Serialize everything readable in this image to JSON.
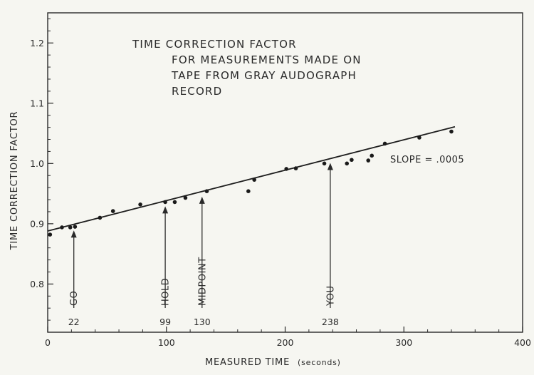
{
  "chart_data": {
    "type": "scatter",
    "title_lines": [
      "TIME  CORRECTION  FACTOR",
      "FOR MEASUREMENTS  MADE  ON",
      "TAPE  FROM  GRAY  AUDOGRAPH",
      "RECORD"
    ],
    "xlabel": "MEASURED  TIME",
    "xlabel_unit": "(seconds)",
    "ylabel": "TIME  CORRECTION  FACTOR",
    "xlim": [
      0,
      400
    ],
    "ylim": [
      0.72,
      1.25
    ],
    "x_ticks": [
      0,
      100,
      200,
      300,
      400
    ],
    "x_tick_labels": [
      "0",
      "100",
      "200",
      "300",
      "400"
    ],
    "y_ticks": [
      0.8,
      0.9,
      1.0,
      1.1,
      1.2
    ],
    "y_tick_labels": [
      "0.8",
      "0.9",
      "1.0",
      "1.1",
      "1.2"
    ],
    "grid": false,
    "points": [
      {
        "x": 2,
        "y": 0.882
      },
      {
        "x": 12,
        "y": 0.894
      },
      {
        "x": 19,
        "y": 0.894
      },
      {
        "x": 23,
        "y": 0.895
      },
      {
        "x": 44,
        "y": 0.91
      },
      {
        "x": 55,
        "y": 0.921
      },
      {
        "x": 78,
        "y": 0.932
      },
      {
        "x": 99,
        "y": 0.936
      },
      {
        "x": 107,
        "y": 0.936
      },
      {
        "x": 116,
        "y": 0.943
      },
      {
        "x": 134,
        "y": 0.954
      },
      {
        "x": 169,
        "y": 0.954
      },
      {
        "x": 174,
        "y": 0.973
      },
      {
        "x": 201,
        "y": 0.991
      },
      {
        "x": 209,
        "y": 0.992
      },
      {
        "x": 233,
        "y": 1.0
      },
      {
        "x": 252,
        "y": 1.0
      },
      {
        "x": 256,
        "y": 1.006
      },
      {
        "x": 270,
        "y": 1.005
      },
      {
        "x": 273,
        "y": 1.013
      },
      {
        "x": 284,
        "y": 1.033
      },
      {
        "x": 313,
        "y": 1.043
      },
      {
        "x": 340,
        "y": 1.053
      }
    ],
    "fit_line": {
      "x": [
        0,
        343
      ],
      "y": [
        0.888,
        1.061
      ]
    },
    "slope_label": "SLOPE = .0005",
    "markers": [
      {
        "label": "GO",
        "x": 22,
        "value_label": "22",
        "y_at": 0.896
      },
      {
        "label": "HOLD",
        "x": 99,
        "value_label": "99",
        "y_at": 0.936
      },
      {
        "label": "MIDPOINT",
        "x": 130,
        "value_label": "130",
        "y_at": 0.952
      },
      {
        "label": "YOU",
        "x": 238,
        "value_label": "238",
        "y_at": 1.008
      }
    ]
  }
}
